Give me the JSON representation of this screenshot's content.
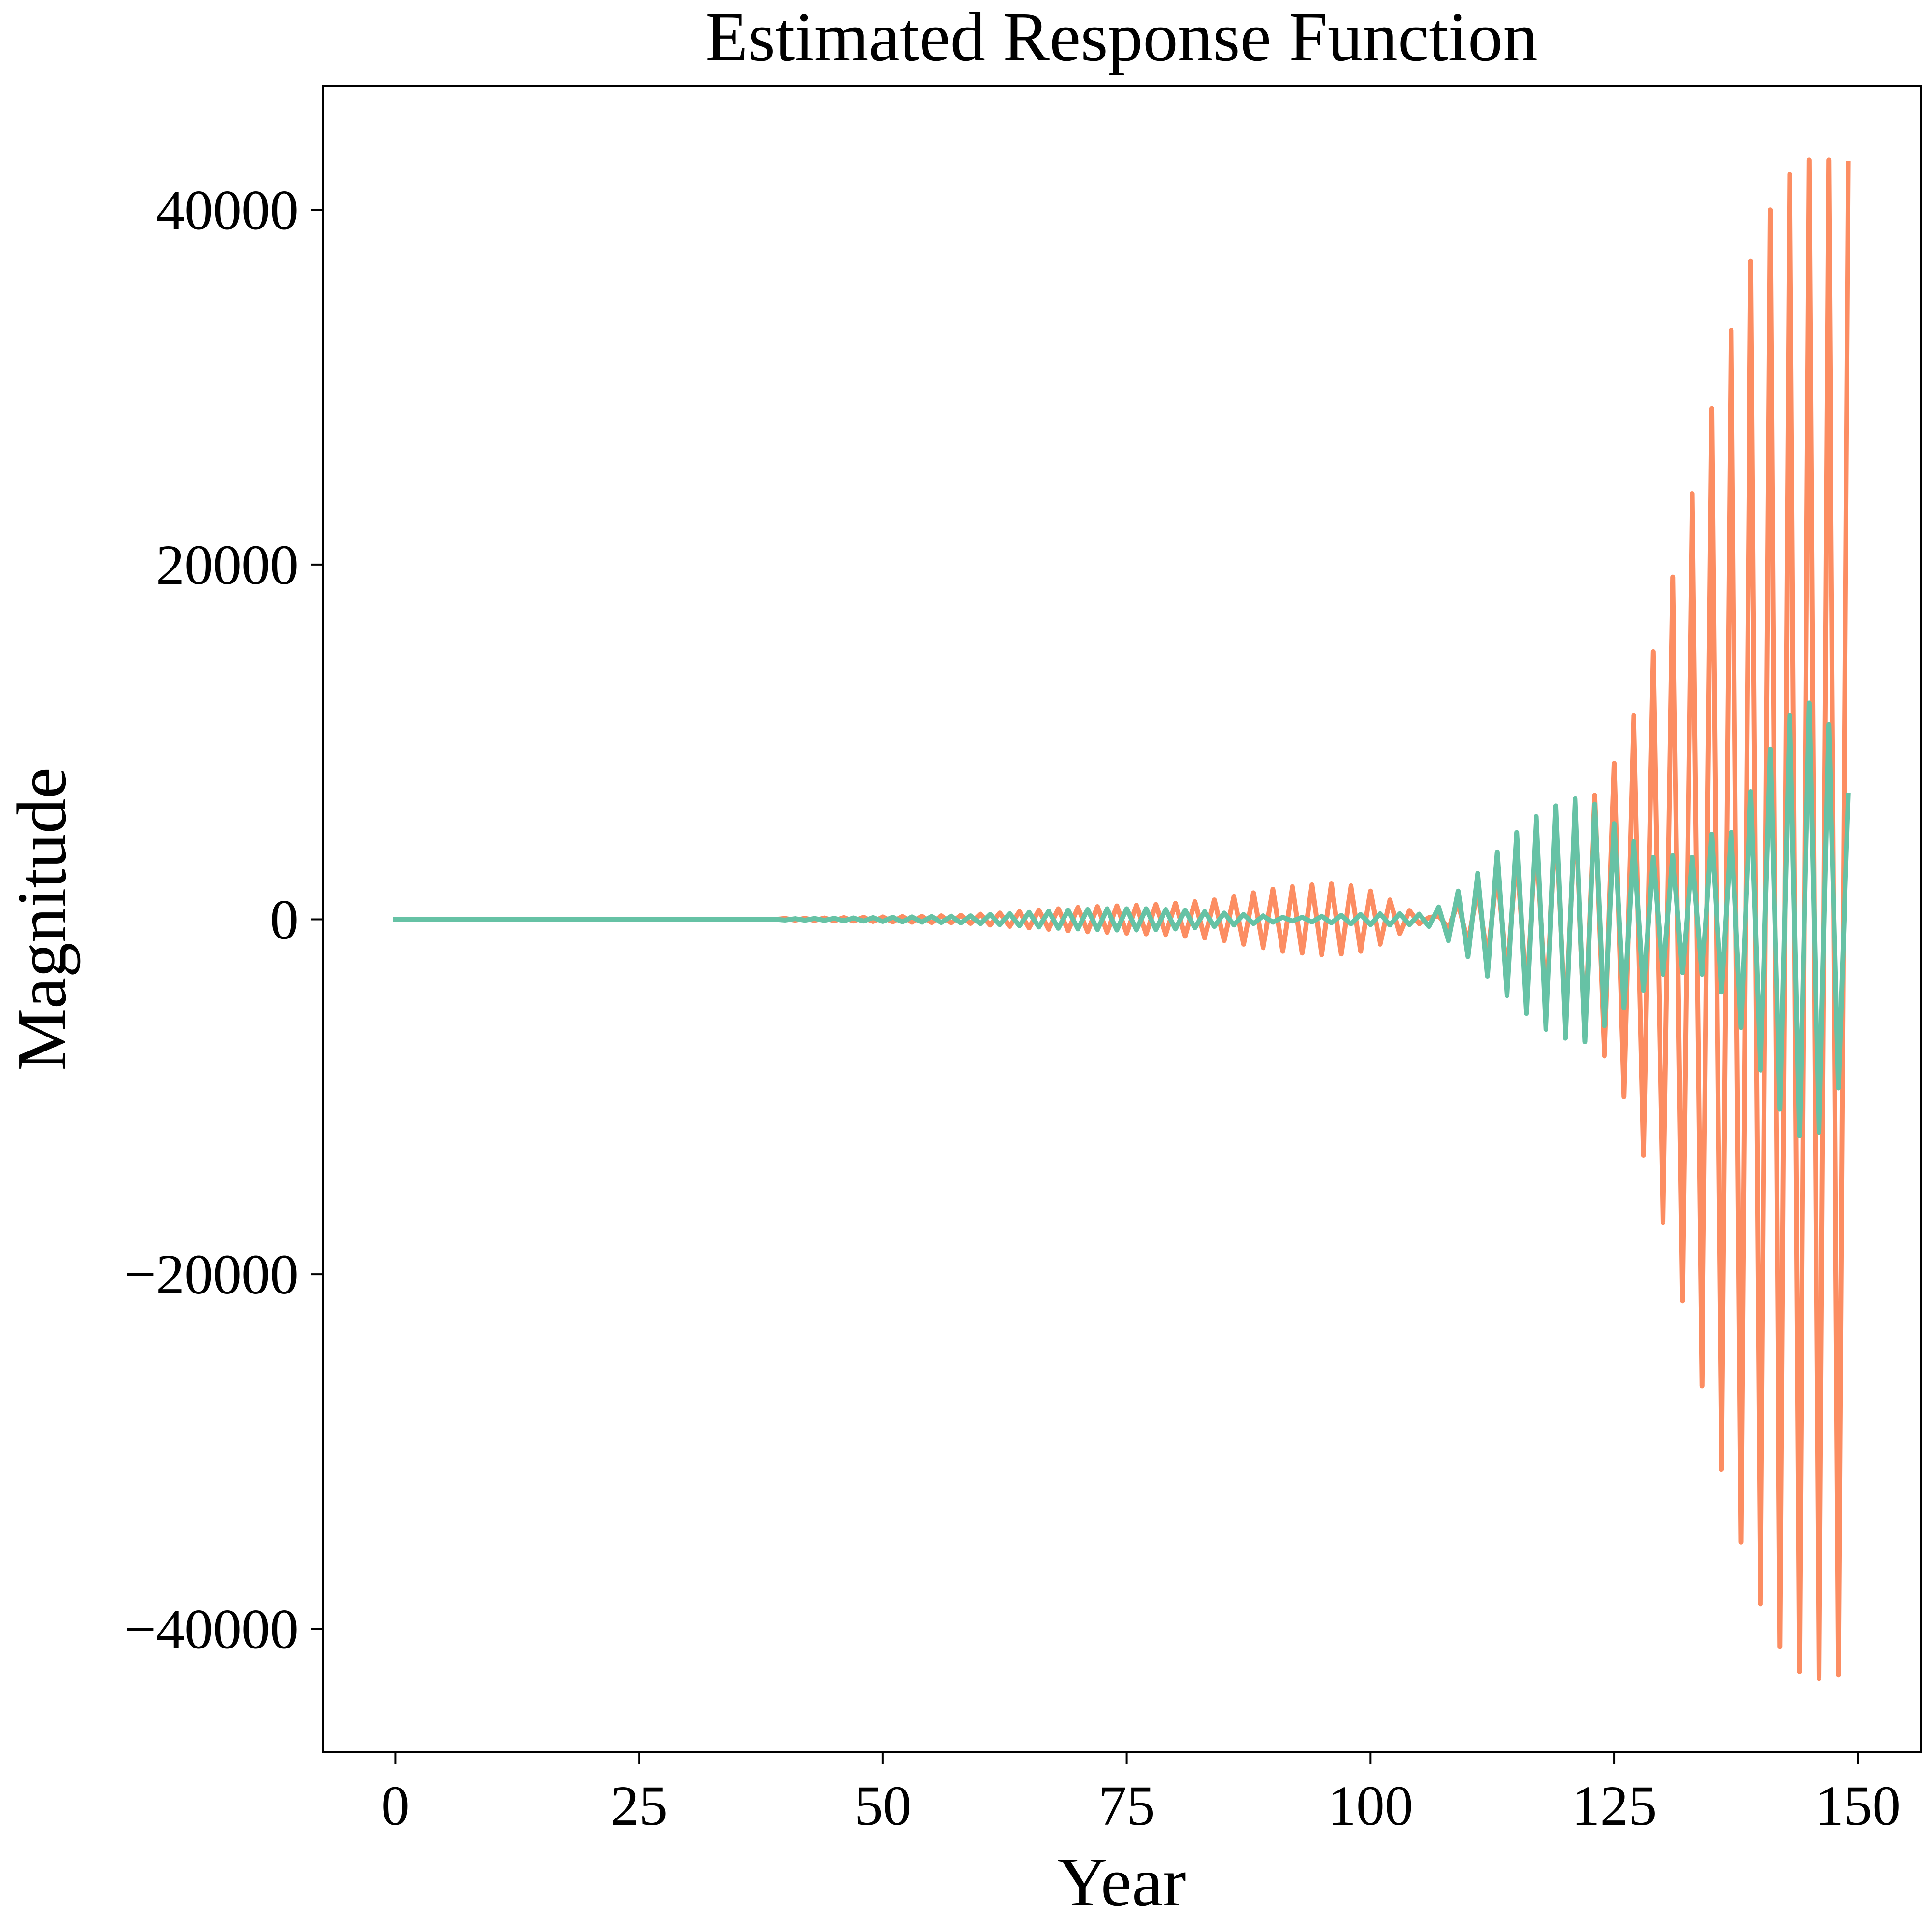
{
  "chart_data": {
    "type": "line",
    "title": "Estimated Response Function",
    "x_label": "Year",
    "y_label": "Magnitude",
    "xlim": [
      -7.45,
      156.45
    ],
    "ylim": [
      -46950,
      46950
    ],
    "xticks": [
      0,
      25,
      50,
      75,
      100,
      125,
      150
    ],
    "yticks": [
      {
        "value": -40000,
        "label": "−40000"
      },
      {
        "value": -20000,
        "label": "−20000"
      },
      0,
      20000,
      40000
    ],
    "grid": false,
    "x": [
      0,
      1,
      2,
      3,
      4,
      5,
      6,
      7,
      8,
      9,
      10,
      11,
      12,
      13,
      14,
      15,
      16,
      17,
      18,
      19,
      20,
      21,
      22,
      23,
      24,
      25,
      26,
      27,
      28,
      29,
      30,
      31,
      32,
      33,
      34,
      35,
      36,
      37,
      38,
      39,
      40,
      41,
      42,
      43,
      44,
      45,
      46,
      47,
      48,
      49,
      50,
      51,
      52,
      53,
      54,
      55,
      56,
      57,
      58,
      59,
      60,
      61,
      62,
      63,
      64,
      65,
      66,
      67,
      68,
      69,
      70,
      71,
      72,
      73,
      74,
      75,
      76,
      77,
      78,
      79,
      80,
      81,
      82,
      83,
      84,
      85,
      86,
      87,
      88,
      89,
      90,
      91,
      92,
      93,
      94,
      95,
      96,
      97,
      98,
      99,
      100,
      101,
      102,
      103,
      104,
      105,
      106,
      107,
      108,
      109,
      110,
      111,
      112,
      113,
      114,
      115,
      116,
      117,
      118,
      119,
      120,
      121,
      122,
      123,
      124,
      125,
      126,
      127,
      128,
      129,
      130,
      131,
      132,
      133,
      134,
      135,
      136,
      137,
      138,
      139,
      140,
      141,
      142,
      143,
      144,
      145,
      146,
      147,
      148,
      149
    ],
    "series": [
      {
        "color": "#fc8d62",
        "values": [
          0,
          0,
          0,
          0,
          0,
          0,
          0,
          0,
          0,
          0,
          0,
          0,
          0,
          0,
          0,
          0,
          0,
          0,
          0,
          0,
          0,
          0,
          0,
          0,
          0,
          0,
          0,
          0,
          0,
          0,
          0,
          0,
          0,
          0,
          0,
          0,
          0,
          0,
          0,
          0,
          50,
          -50,
          60,
          -60,
          80,
          -80,
          100,
          -100,
          120,
          -120,
          140,
          -140,
          160,
          -160,
          180,
          -180,
          200,
          -200,
          230,
          -230,
          300,
          -320,
          360,
          -400,
          440,
          -480,
          520,
          -560,
          600,
          -640,
          680,
          -700,
          720,
          -740,
          760,
          -780,
          800,
          -820,
          840,
          -860,
          900,
          -950,
          1000,
          -1050,
          1100,
          -1200,
          1300,
          -1400,
          1500,
          -1600,
          1700,
          -1800,
          1850,
          -1900,
          1950,
          -2000,
          2000,
          -1950,
          1900,
          -1800,
          1600,
          -1400,
          1100,
          -800,
          500,
          -250,
          100,
          200,
          -500,
          900,
          -1300,
          1700,
          -2200,
          2700,
          -3200,
          3700,
          -4200,
          4700,
          -5100,
          5600,
          -6000,
          6300,
          -6700,
          7000,
          -7700,
          8800,
          -10000,
          11500,
          -13300,
          15100,
          -17100,
          19300,
          -21500,
          24000,
          -26300,
          28800,
          -31000,
          33200,
          -35100,
          37100,
          -38600,
          40000,
          -41000,
          42000,
          -42400,
          42800,
          -42800,
          42800,
          -42600,
          42600
        ]
      },
      {
        "color": "#66c2a5",
        "values": [
          0,
          0,
          0,
          0,
          0,
          0,
          0,
          0,
          0,
          0,
          0,
          0,
          0,
          0,
          0,
          0,
          0,
          0,
          0,
          0,
          0,
          0,
          0,
          0,
          0,
          0,
          0,
          0,
          0,
          0,
          0,
          0,
          0,
          0,
          0,
          0,
          0,
          0,
          0,
          0,
          -40,
          40,
          -50,
          50,
          -60,
          60,
          -80,
          80,
          -100,
          100,
          -120,
          120,
          -140,
          140,
          -160,
          160,
          -180,
          180,
          -200,
          200,
          -250,
          280,
          -300,
          330,
          -360,
          400,
          -430,
          460,
          -500,
          520,
          -540,
          560,
          -580,
          600,
          -600,
          600,
          -600,
          600,
          -580,
          560,
          -540,
          520,
          -480,
          440,
          -400,
          360,
          -320,
          280,
          -240,
          200,
          -160,
          120,
          -100,
          120,
          -150,
          180,
          -200,
          230,
          -260,
          280,
          -300,
          320,
          -320,
          320,
          -300,
          300,
          -400,
          700,
          -1200,
          1600,
          -2100,
          2600,
          -3200,
          3800,
          -4300,
          4900,
          -5300,
          5800,
          -6200,
          6400,
          -6700,
          6800,
          -6900,
          6500,
          -6000,
          5400,
          -5000,
          4400,
          -4000,
          3500,
          -3100,
          3600,
          -3000,
          3500,
          -3100,
          4800,
          -4100,
          4900,
          -6100,
          7200,
          -8500,
          9600,
          -10700,
          11500,
          -12200,
          12200,
          -12000,
          11000,
          -9500,
          7000
        ]
      }
    ]
  }
}
